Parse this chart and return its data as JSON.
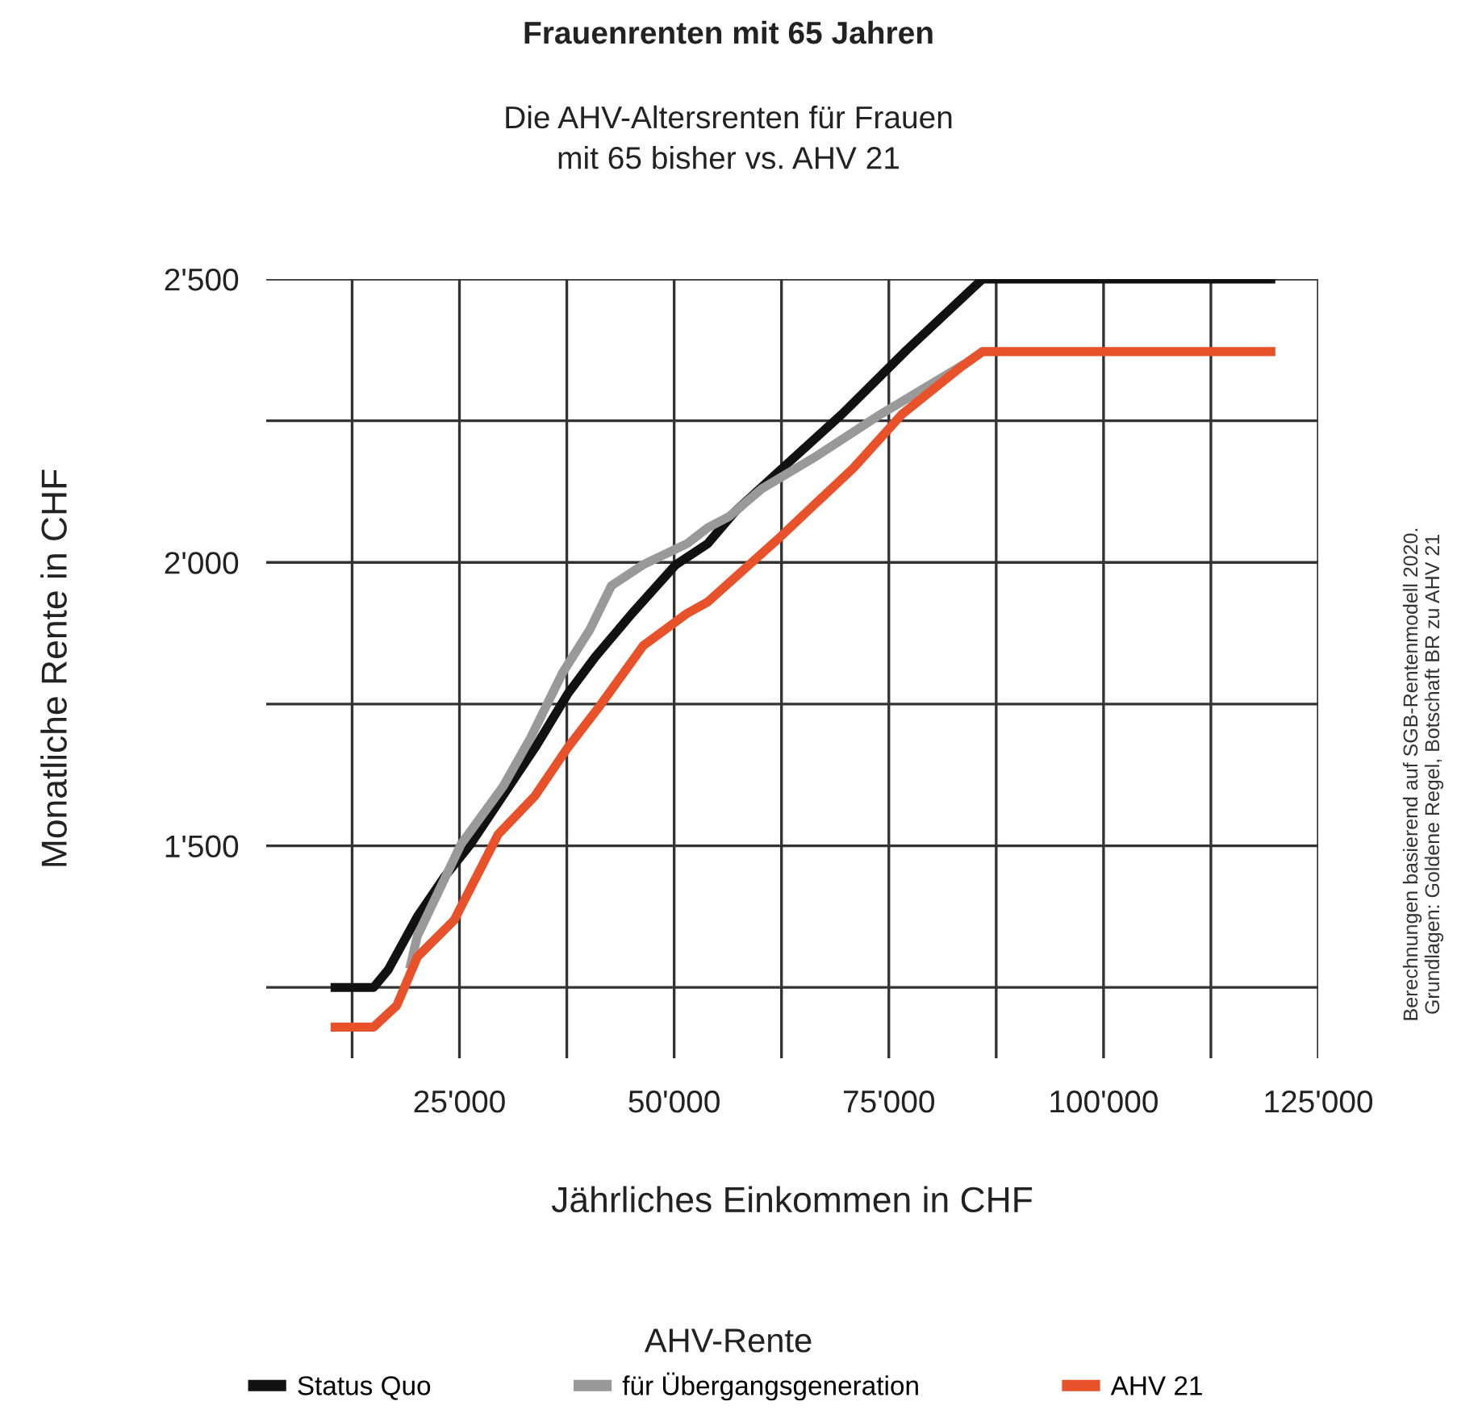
{
  "chart_data": {
    "type": "line",
    "title": "Frauenrenten mit 65 Jahren",
    "subtitle": "Die AHV-Altersrenten für Frauen\nmit 65 bisher vs. AHV 21",
    "xlabel": "Jährliches Einkommen in CHF",
    "ylabel": "Monatliche Rente in CHF",
    "legend_title": "AHV-Rente",
    "annotations": [
      "Berechnungen basierend auf SGB-Rentenmodell 2020.\nGrundlagen: Goldene Regel, Botschaft BR zu AHV 21"
    ],
    "series": [
      {
        "name": "Status Quo",
        "color": "#111111",
        "x": [
          10000,
          15000,
          16700,
          20100,
          23300,
          26300,
          30800,
          33800,
          37600,
          40800,
          45100,
          50200,
          53900,
          57100,
          62000,
          69500,
          77100,
          85900,
          120000
        ],
        "values": [
          1250,
          1250,
          1281,
          1375,
          1446,
          1503,
          1605,
          1673,
          1768,
          1833,
          1910,
          1996,
          2033,
          2090,
          2158,
          2261,
          2375,
          2500,
          2500
        ]
      },
      {
        "name": "für Übergangsgeneration",
        "color": "#999999",
        "x": [
          19200,
          20100,
          25200,
          30100,
          33300,
          37000,
          40200,
          42700,
          46400,
          51500,
          53900,
          56400,
          60200,
          66500,
          74000,
          80300,
          84000,
          85900
        ],
        "values": [
          1283,
          1341,
          1503,
          1605,
          1691,
          1805,
          1882,
          1959,
          1996,
          2033,
          2061,
          2081,
          2130,
          2187,
          2261,
          2318,
          2352,
          2372
        ]
      },
      {
        "name": "AHV 21",
        "color": "#e8522a",
        "x": [
          10000,
          15000,
          17700,
          20100,
          24400,
          29500,
          33800,
          37600,
          41400,
          46400,
          51500,
          53900,
          62000,
          70900,
          76500,
          83500,
          85900,
          120000
        ],
        "values": [
          1180,
          1180,
          1218,
          1304,
          1369,
          1520,
          1588,
          1673,
          1748,
          1853,
          1910,
          1930,
          2040,
          2167,
          2261,
          2346,
          2372,
          2372
        ]
      }
    ],
    "xlim": [
      2500,
      125000
    ],
    "ylim": [
      1125,
      2500
    ],
    "xticks": [
      {
        "value": 12500,
        "label": null
      },
      {
        "value": 25000,
        "label": "25'000"
      },
      {
        "value": 37500,
        "label": null
      },
      {
        "value": 50000,
        "label": "50'000"
      },
      {
        "value": 62500,
        "label": null
      },
      {
        "value": 75000,
        "label": "75'000"
      },
      {
        "value": 87500,
        "label": null
      },
      {
        "value": 100000,
        "label": "100'000"
      },
      {
        "value": 112500,
        "label": null
      },
      {
        "value": 125000,
        "label": "125'000"
      }
    ],
    "yticks": [
      {
        "value": 1250,
        "label": null
      },
      {
        "value": 1500,
        "label": "1'500"
      },
      {
        "value": 1750,
        "label": null
      },
      {
        "value": 2000,
        "label": "2'000"
      },
      {
        "value": 2250,
        "label": null
      },
      {
        "value": 2500,
        "label": "2'500"
      }
    ],
    "grid": true,
    "legend": "bottom",
    "marker": "none",
    "line_style": "solid"
  }
}
